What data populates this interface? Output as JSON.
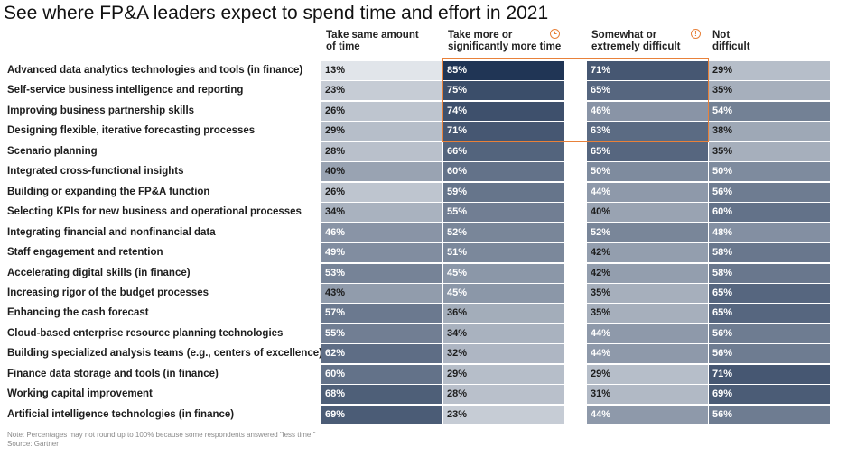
{
  "title": "See where FP&A leaders expect to spend time and effort in 2021",
  "column_headers": [
    [
      "Take same amount",
      "of time"
    ],
    [
      "Take more or",
      "significantly more time"
    ],
    [
      "Somewhat or",
      "extremely difficult"
    ],
    [
      "Not",
      "difficult"
    ]
  ],
  "icons": [
    "clock-icon",
    "alert-icon"
  ],
  "colors": {
    "darkest": "#13294b",
    "lightest": "#e9ecf0",
    "highlight": "#e8813a"
  },
  "chart_data": {
    "type": "table",
    "title": "See where FP&A leaders expect to spend time and effort in 2021",
    "columns": [
      "Take same amount of time",
      "Take more or significantly more time",
      "Somewhat or extremely difficult",
      "Not difficult"
    ],
    "rows": [
      {
        "label": "Advanced data analytics technologies and tools (in finance)",
        "values": [
          "13%",
          "85%",
          "71%",
          "29%"
        ]
      },
      {
        "label": "Self-service business intelligence and reporting",
        "values": [
          "23%",
          "75%",
          "65%",
          "35%"
        ]
      },
      {
        "label": "Improving business partnership skills",
        "values": [
          "26%",
          "74%",
          "46%",
          "54%"
        ]
      },
      {
        "label": "Designing flexible, iterative forecasting processes",
        "values": [
          "29%",
          "71%",
          "63%",
          "38%"
        ]
      },
      {
        "label": "Scenario planning",
        "values": [
          "28%",
          "66%",
          "65%",
          "35%"
        ]
      },
      {
        "label": "Integrated cross-functional insights",
        "values": [
          "40%",
          "60%",
          "50%",
          "50%"
        ]
      },
      {
        "label": "Building or expanding the FP&A function",
        "values": [
          "26%",
          "59%",
          "44%",
          "56%"
        ]
      },
      {
        "label": "Selecting KPIs for new business and operational processes",
        "values": [
          "34%",
          "55%",
          "40%",
          "60%"
        ]
      },
      {
        "label": "Integrating financial and nonfinancial data",
        "values": [
          "46%",
          "52%",
          "52%",
          "48%"
        ]
      },
      {
        "label": "Staff engagement and retention",
        "values": [
          "49%",
          "51%",
          "42%",
          "58%"
        ]
      },
      {
        "label": "Accelerating digital skills (in finance)",
        "values": [
          "53%",
          "45%",
          "42%",
          "58%"
        ]
      },
      {
        "label": "Increasing rigor of the budget processes",
        "values": [
          "43%",
          "45%",
          "35%",
          "65%"
        ]
      },
      {
        "label": "Enhancing the cash forecast",
        "values": [
          "57%",
          "36%",
          "35%",
          "65%"
        ]
      },
      {
        "label": "Cloud-based enterprise resource planning technologies",
        "values": [
          "55%",
          "34%",
          "44%",
          "56%"
        ]
      },
      {
        "label": "Building specialized analysis teams (e.g., centers of excellence)",
        "values": [
          "62%",
          "32%",
          "44%",
          "56%"
        ]
      },
      {
        "label": "Finance data storage and tools (in finance)",
        "values": [
          "60%",
          "29%",
          "29%",
          "71%"
        ]
      },
      {
        "label": "Working capital improvement",
        "values": [
          "68%",
          "28%",
          "31%",
          "69%"
        ]
      },
      {
        "label": "Artificial intelligence technologies (in finance)",
        "values": [
          "69%",
          "23%",
          "44%",
          "56%"
        ]
      }
    ],
    "highlighted_rows": [
      0,
      1,
      2,
      3
    ],
    "highlighted_columns": [
      1,
      2
    ]
  },
  "footnotes": [
    "Note: Percentages may not round up to 100% because some respondents answered \"less time.\"",
    "Source: Gartner"
  ]
}
